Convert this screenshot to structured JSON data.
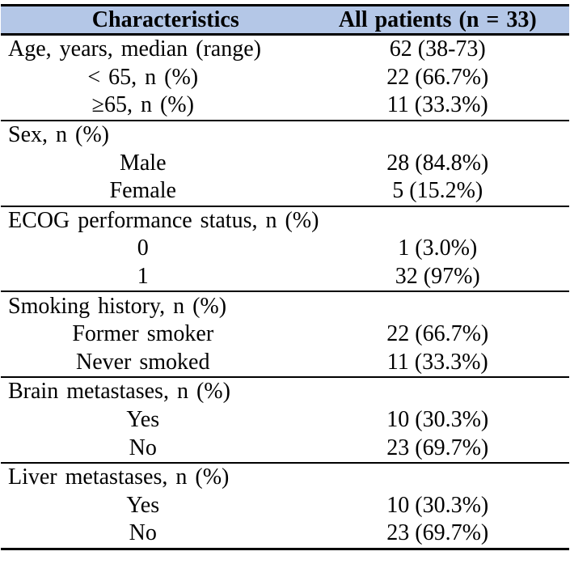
{
  "table": {
    "header": {
      "characteristics": "Characteristics",
      "all_patients": "All patients (n = 33)",
      "bg_color": "#b4c7e7"
    },
    "border_color": "#000000",
    "sections": [
      {
        "name": "age",
        "rows": [
          {
            "label": "Age, years, median (range)",
            "value": "62 (38-73)",
            "indent": false
          },
          {
            "label": "< 65, n (%)",
            "value": "22 (66.7%)",
            "indent": true
          },
          {
            "label": "≥65, n (%)",
            "value": "11 (33.3%)",
            "indent": true
          }
        ]
      },
      {
        "name": "sex",
        "rows": [
          {
            "label": "Sex, n (%)",
            "value": "",
            "indent": false
          },
          {
            "label": "Male",
            "value": "28 (84.8%)",
            "indent": true
          },
          {
            "label": "Female",
            "value": "5 (15.2%)",
            "indent": true
          }
        ]
      },
      {
        "name": "ecog-performance-status",
        "rows": [
          {
            "label": "ECOG performance status, n (%)",
            "value": "",
            "indent": false
          },
          {
            "label": "0",
            "value": "1 (3.0%)",
            "indent": true
          },
          {
            "label": "1",
            "value": "32 (97%)",
            "indent": true
          }
        ]
      },
      {
        "name": "smoking-history",
        "rows": [
          {
            "label": "Smoking history, n (%)",
            "value": "",
            "indent": false
          },
          {
            "label": "Former smoker",
            "value": "22 (66.7%)",
            "indent": true
          },
          {
            "label": "Never smoked",
            "value": "11 (33.3%)",
            "indent": true
          }
        ]
      },
      {
        "name": "brain-metastases",
        "rows": [
          {
            "label": "Brain metastases, n (%)",
            "value": "",
            "indent": false
          },
          {
            "label": "Yes",
            "value": "10 (30.3%)",
            "indent": true
          },
          {
            "label": "No",
            "value": "23 (69.7%)",
            "indent": true
          }
        ]
      },
      {
        "name": "liver-metastases",
        "rows": [
          {
            "label": "Liver metastases, n (%)",
            "value": "",
            "indent": false
          },
          {
            "label": "Yes",
            "value": "10 (30.3%)",
            "indent": true
          },
          {
            "label": "No",
            "value": "23 (69.7%)",
            "indent": true
          }
        ]
      }
    ]
  }
}
